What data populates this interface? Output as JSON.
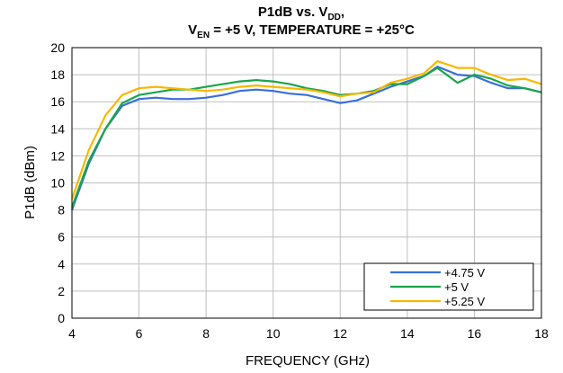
{
  "chart_data": {
    "type": "line",
    "title": {
      "line1": "P1dB vs. V",
      "line1_sub": "DD",
      "line1_tail": ",",
      "line2": "V",
      "line2_sub": "EN",
      "line2_tail": " = +5 V, TEMPERATURE = +25°C"
    },
    "xlabel": "FREQUENCY (GHz)",
    "ylabel": "P1dB (dBm)",
    "xlim": [
      4,
      18
    ],
    "ylim": [
      0,
      20
    ],
    "xticks": [
      4,
      6,
      8,
      10,
      12,
      14,
      16,
      18
    ],
    "yticks": [
      0,
      2,
      4,
      6,
      8,
      10,
      12,
      14,
      16,
      18,
      20
    ],
    "grid": true,
    "legend_position": "bottom-right",
    "series": [
      {
        "name": "+4.75 V",
        "color": "#3a6fd8",
        "x": [
          4.0,
          4.5,
          5.0,
          5.5,
          6.0,
          6.5,
          7.0,
          7.5,
          8.0,
          8.5,
          9.0,
          9.5,
          10.0,
          10.5,
          11.0,
          11.5,
          12.0,
          12.5,
          13.0,
          13.5,
          14.0,
          14.5,
          14.9,
          15.5,
          16.0,
          16.5,
          17.0,
          17.5,
          18.0
        ],
        "y": [
          8.0,
          11.4,
          14.0,
          15.7,
          16.2,
          16.3,
          16.2,
          16.2,
          16.3,
          16.5,
          16.8,
          16.9,
          16.8,
          16.6,
          16.5,
          16.2,
          15.9,
          16.1,
          16.6,
          17.1,
          17.5,
          17.9,
          18.6,
          18.0,
          17.9,
          17.4,
          17.0,
          17.0,
          16.7
        ]
      },
      {
        "name": "+5 V",
        "color": "#1aa54a",
        "x": [
          4.0,
          4.5,
          5.0,
          5.5,
          6.0,
          6.5,
          7.0,
          7.5,
          8.0,
          8.5,
          9.0,
          9.5,
          10.0,
          10.5,
          11.0,
          11.5,
          12.0,
          12.5,
          13.0,
          13.5,
          14.0,
          14.5,
          14.9,
          15.5,
          16.0,
          16.5,
          17.0,
          17.5,
          18.0
        ],
        "y": [
          8.2,
          11.6,
          14.0,
          15.9,
          16.5,
          16.7,
          16.9,
          16.9,
          17.1,
          17.3,
          17.5,
          17.6,
          17.5,
          17.3,
          17.0,
          16.8,
          16.5,
          16.6,
          16.8,
          17.3,
          17.3,
          17.9,
          18.5,
          17.4,
          18.0,
          17.7,
          17.2,
          17.0,
          16.7
        ]
      },
      {
        "name": "+5.25 V",
        "color": "#f7b800",
        "x": [
          4.0,
          4.5,
          5.0,
          5.5,
          6.0,
          6.5,
          7.0,
          7.5,
          8.0,
          8.5,
          9.0,
          9.5,
          10.0,
          10.5,
          11.0,
          11.5,
          12.0,
          12.5,
          13.0,
          13.5,
          14.0,
          14.5,
          14.9,
          15.5,
          16.0,
          16.5,
          17.0,
          17.5,
          18.0
        ],
        "y": [
          8.8,
          12.4,
          15.0,
          16.5,
          17.0,
          17.1,
          17.0,
          16.9,
          16.8,
          16.9,
          17.1,
          17.2,
          17.1,
          17.0,
          16.9,
          16.7,
          16.4,
          16.6,
          16.7,
          17.4,
          17.7,
          18.1,
          19.0,
          18.5,
          18.5,
          18.0,
          17.6,
          17.7,
          17.3
        ]
      }
    ]
  }
}
